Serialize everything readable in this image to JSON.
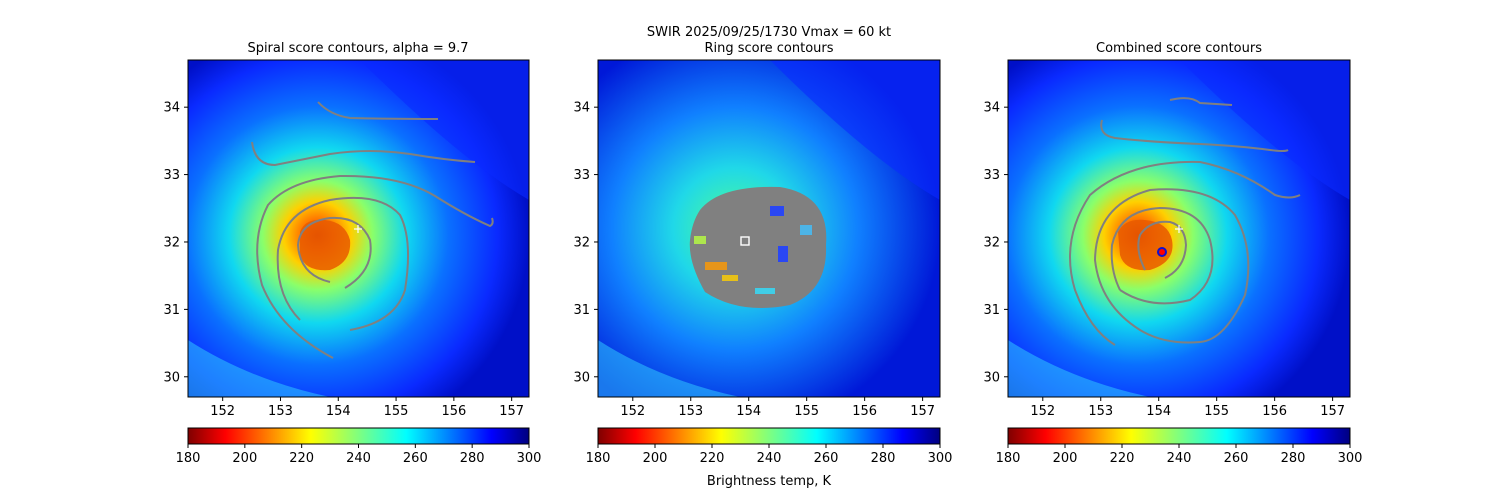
{
  "figure": {
    "suptitle_line1": "SWIR  2025/09/25/1730    Vmax = 60 kt",
    "colorbar_label": "Brightness temp, K"
  },
  "colors": {
    "contour": "#808080",
    "center_marker": "#ffffff",
    "combined_dot": "#ff0000",
    "combined_ring": "#1010d0"
  },
  "chart_data": [
    {
      "type": "heatmap",
      "title": "Spiral score contours, alpha =  9.7",
      "xlim": [
        151.4,
        157.3
      ],
      "ylim": [
        29.7,
        34.7
      ],
      "xticks": [
        "152",
        "153",
        "154",
        "155",
        "156",
        "157"
      ],
      "yticks": [
        "30",
        "31",
        "32",
        "33",
        "34"
      ],
      "colorbar": {
        "range": [
          180,
          300
        ],
        "ticks": [
          "180",
          "200",
          "220",
          "240",
          "260",
          "280",
          "300"
        ]
      },
      "marker": {
        "shape": "plus",
        "x": 154.33,
        "y": 32.2
      }
    },
    {
      "type": "heatmap",
      "title": "Ring score contours",
      "xlim": [
        151.4,
        157.3
      ],
      "ylim": [
        29.7,
        34.7
      ],
      "xticks": [
        "152",
        "153",
        "154",
        "155",
        "156",
        "157"
      ],
      "yticks": [
        "30",
        "31",
        "32",
        "33",
        "34"
      ],
      "colorbar": {
        "range": [
          180,
          300
        ],
        "ticks": [
          "180",
          "200",
          "220",
          "240",
          "260",
          "280",
          "300"
        ]
      },
      "marker": {
        "shape": "square",
        "x": 153.93,
        "y": 32.03
      },
      "ring_region": {
        "center": [
          154.3,
          31.95
        ],
        "radius_deg": 1.2
      }
    },
    {
      "type": "heatmap",
      "title": "Combined score contours",
      "xlim": [
        151.4,
        157.3
      ],
      "ylim": [
        29.7,
        34.7
      ],
      "xticks": [
        "152",
        "153",
        "154",
        "155",
        "156",
        "157"
      ],
      "yticks": [
        "30",
        "31",
        "32",
        "33",
        "34"
      ],
      "colorbar": {
        "range": [
          180,
          300
        ],
        "ticks": [
          "180",
          "200",
          "220",
          "240",
          "260",
          "280",
          "300"
        ]
      },
      "marker": {
        "shape": "plus",
        "x": 154.33,
        "y": 32.2
      },
      "marker2": {
        "shape": "dot",
        "x": 154.03,
        "y": 31.88
      }
    }
  ]
}
